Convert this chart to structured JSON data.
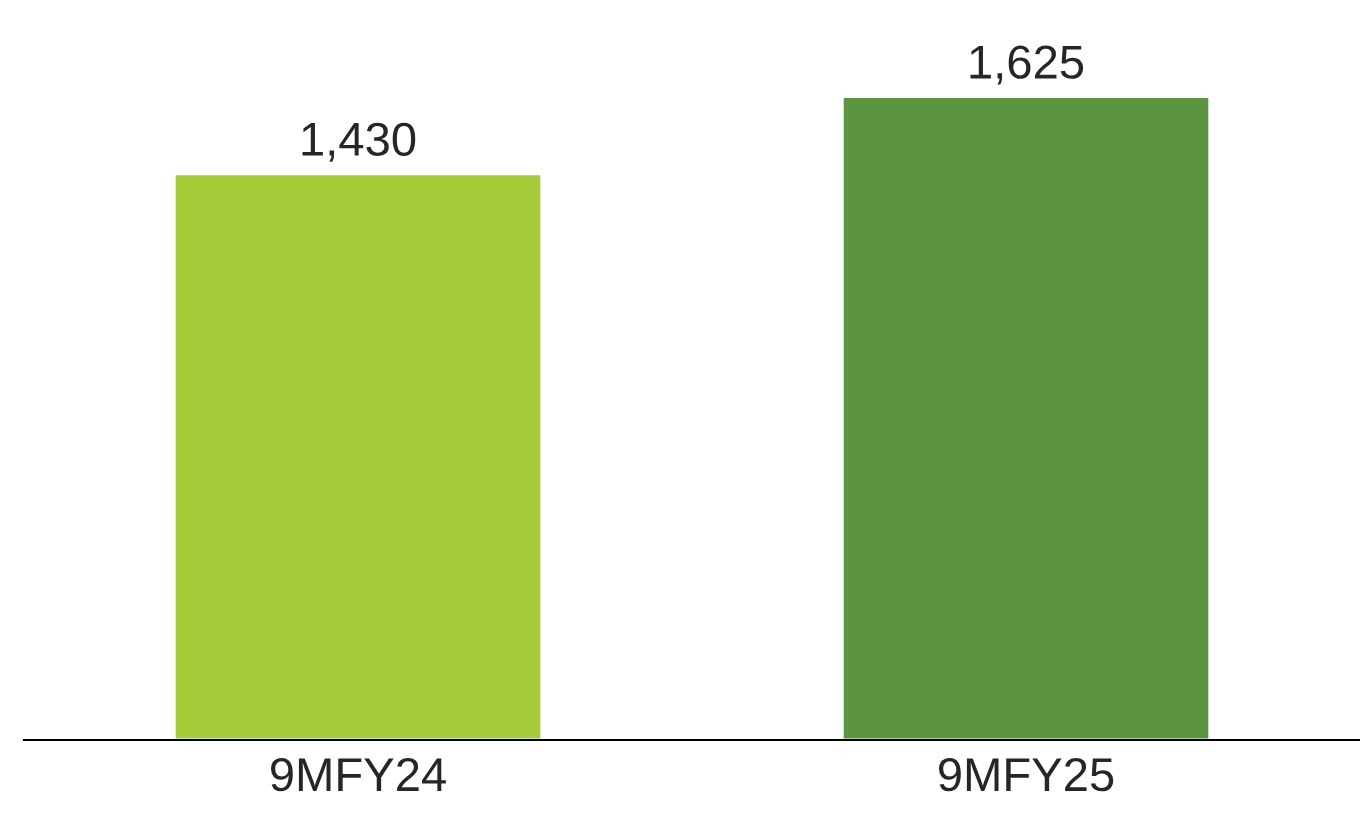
{
  "chart_data": {
    "type": "bar",
    "categories": [
      "9MFY24",
      "9MFY25"
    ],
    "values": [
      1430,
      1625
    ],
    "colors": [
      "#a5cd39",
      "#5b9540"
    ],
    "value_labels": [
      "1,430",
      "1,625"
    ],
    "tick_labels": "x",
    "grid": false,
    "legend": false
  }
}
